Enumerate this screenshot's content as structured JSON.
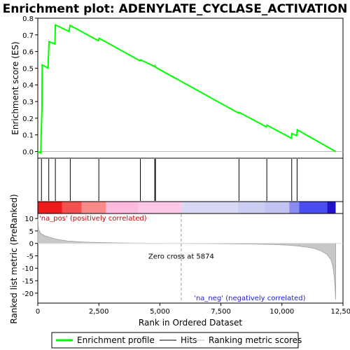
{
  "chart_data": {
    "type": "line",
    "title": "Enrichment plot: ADENYLATE_CYCLASE_ACTIVATION",
    "xlabel": "Rank in Ordered Dataset",
    "xlim": [
      0,
      12500
    ],
    "x_ticks": [
      0,
      2500,
      5000,
      7500,
      10000,
      12500
    ],
    "x_tick_labels": [
      "0",
      "2,500",
      "5,000",
      "7,500",
      "10,000",
      "12,500"
    ],
    "enrichment": {
      "ylabel": "Enrichment score (ES)",
      "ylim": [
        -0.04,
        0.8
      ],
      "y_ticks": [
        0.0,
        0.1,
        0.2,
        0.3,
        0.4,
        0.5,
        0.6,
        0.7,
        0.8
      ],
      "y_tick_labels": [
        "0.0",
        "0.1",
        "0.2",
        "0.3",
        "0.4",
        "0.5",
        "0.6",
        "0.7",
        "0.8"
      ],
      "color": "#00ff00",
      "x": [
        0,
        120,
        170,
        180,
        420,
        460,
        700,
        720,
        1280,
        1320,
        2480,
        2510,
        4180,
        4210,
        4780,
        4800,
        4830,
        8230,
        8250,
        9360,
        9390,
        10380,
        10410,
        10600,
        10630,
        12200
      ],
      "y": [
        0.0,
        -0.01,
        0.26,
        0.52,
        0.5,
        0.66,
        0.645,
        0.76,
        0.72,
        0.757,
        0.665,
        0.68,
        0.545,
        0.55,
        0.51,
        0.515,
        0.505,
        0.23,
        0.235,
        0.148,
        0.158,
        0.08,
        0.108,
        0.095,
        0.13,
        0.0
      ]
    },
    "hits": {
      "positions": [
        150,
        450,
        720,
        1330,
        2500,
        4200,
        4790,
        4820,
        8240,
        9380,
        10400,
        10620
      ]
    },
    "ranked_metric": {
      "ylabel": "Ranked list metric (PreRanked)",
      "ylim": [
        -24,
        12
      ],
      "y_ticks": [
        10,
        5,
        0,
        -5,
        -10,
        -15,
        -20
      ],
      "y_tick_labels": [
        "10",
        "5",
        "0",
        "-5",
        "-10",
        "-15",
        "-20"
      ],
      "x": [
        0,
        30,
        80,
        150,
        300,
        500,
        800,
        1200,
        1600,
        2000,
        2500,
        3000,
        4000,
        5000,
        5874,
        7000,
        8000,
        9000,
        9800,
        10300,
        10700,
        11000,
        11300,
        11600,
        11850,
        12000,
        12080,
        12130,
        12170,
        12200
      ],
      "y": [
        10,
        6,
        4.6,
        3.8,
        3.0,
        2.4,
        1.6,
        1.0,
        0.7,
        0.5,
        0.35,
        0.25,
        0.1,
        0.05,
        0.0,
        -0.1,
        -0.2,
        -0.35,
        -0.5,
        -0.75,
        -1.1,
        -1.5,
        -2.0,
        -3.0,
        -4.5,
        -6.5,
        -9.0,
        -12.5,
        -17.0,
        -22.5
      ],
      "zero_cross_x": 5874,
      "zero_cross_label": "Zero cross at 5874",
      "pos_label": "'na_pos' (positively correlated)",
      "neg_label": "'na_neg' (negatively correlated)"
    },
    "color_bar": {
      "segments": [
        {
          "x0": 0,
          "x1": 1000,
          "color": "#ee1a1a"
        },
        {
          "x0": 1000,
          "x1": 1800,
          "color": "#f45050"
        },
        {
          "x0": 1800,
          "x1": 2800,
          "color": "#fa8a8a"
        },
        {
          "x0": 2800,
          "x1": 4100,
          "color": "#fcbbdd"
        },
        {
          "x0": 4100,
          "x1": 5874,
          "color": "#fcc8e8"
        },
        {
          "x0": 5874,
          "x1": 8200,
          "color": "#d8d8f4"
        },
        {
          "x0": 8200,
          "x1": 9300,
          "color": "#cccdf2"
        },
        {
          "x0": 9300,
          "x1": 10300,
          "color": "#c3c3f2"
        },
        {
          "x0": 10300,
          "x1": 10700,
          "color": "#8a8cf4"
        },
        {
          "x0": 10700,
          "x1": 11850,
          "color": "#4a4ef0"
        },
        {
          "x0": 11850,
          "x1": 12200,
          "color": "#1f12c8"
        }
      ]
    },
    "legend": {
      "placement": "bottom",
      "entries": [
        {
          "label": "Enrichment profile",
          "color": "#00ff00"
        },
        {
          "label": "Hits",
          "color": "#000000"
        },
        {
          "label": "Ranking metric scores",
          "color": "#bbbbbb"
        }
      ]
    }
  }
}
